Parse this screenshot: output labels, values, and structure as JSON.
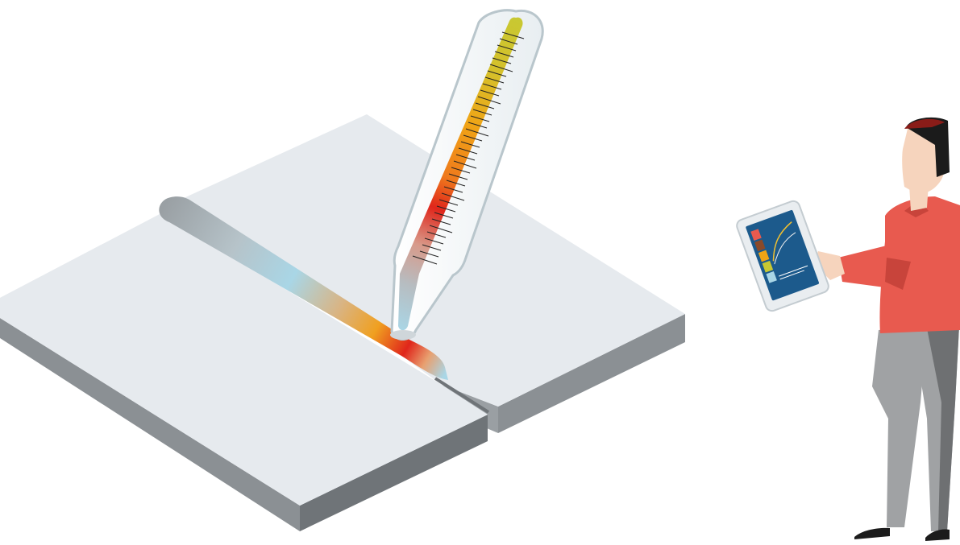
{
  "scene": {
    "description_visible_text": "",
    "colors": {
      "background": "#ffffff",
      "plate_top": "#e6eaee",
      "plate_side": "#8b9094",
      "plate_side_dark": "#6f7478",
      "weld_cool": "#a9d6e6",
      "weld_warm": "#f0a020",
      "weld_hot": "#e0261b",
      "weld_gray": "#9aa0a4",
      "thermometer_glass": "#eef2f4",
      "thermometer_outline": "#b9c6cc",
      "mercury_top": "#c8c832",
      "mercury_mid": "#f0a416",
      "mercury_hot": "#e0261b",
      "mercury_bottom": "#a9d6e6",
      "shirt": "#e85a4f",
      "shirt_shadow": "#c8443b",
      "pants": "#a0a2a4",
      "pants_shadow": "#6e7072",
      "skin": "#f6d4bd",
      "hair": "#1b1b1b",
      "hair_accent": "#8a1c18",
      "tablet_frame": "#e9edf0",
      "tablet_screen": "#1c5a8c",
      "shoe": "#1b1b1b"
    },
    "icons": {
      "thermometer": "thermometer-icon",
      "tablet": "tablet-icon"
    }
  }
}
